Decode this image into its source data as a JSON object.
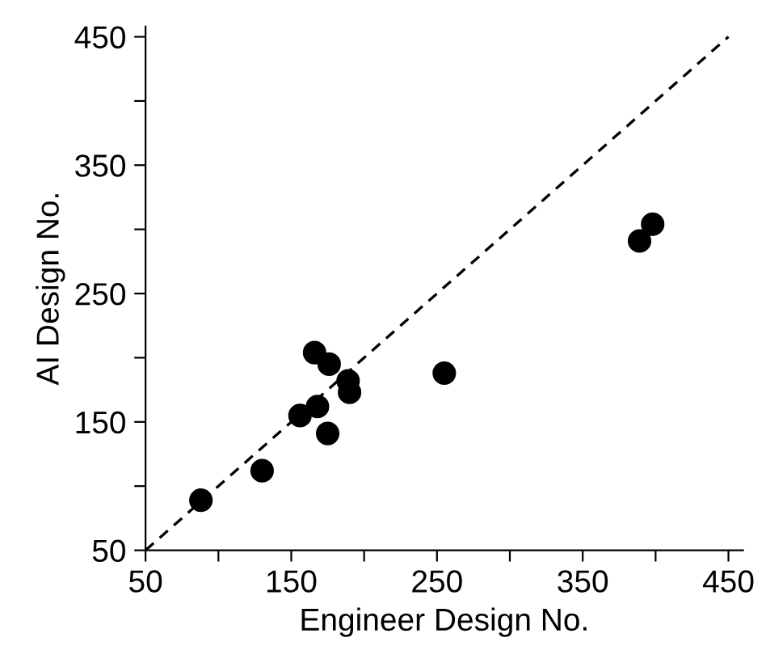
{
  "chart_data": {
    "type": "scatter",
    "xlabel": "Engineer Design No.",
    "ylabel": "AI Design No.",
    "xlim": [
      50,
      460
    ],
    "ylim": [
      50,
      458
    ],
    "xticks": [
      50,
      {
        "value": 100,
        "label": null
      },
      150,
      {
        "value": 200,
        "label": null
      },
      250,
      {
        "value": 300,
        "label": null
      },
      350,
      {
        "value": 400,
        "label": null
      },
      450
    ],
    "yticks": [
      50,
      {
        "value": 100,
        "label": null
      },
      150,
      {
        "value": 200,
        "label": null
      },
      250,
      {
        "value": 300,
        "label": null
      },
      350,
      {
        "value": 400,
        "label": null
      },
      450
    ],
    "grid": false,
    "legend": false,
    "marker": "circle",
    "series": [
      {
        "type": "scatter",
        "color": "#000000",
        "x": [
          88,
          130,
          156,
          168,
          166,
          176,
          189,
          190,
          175,
          255,
          389,
          398
        ],
        "values": [
          89,
          112,
          155,
          162,
          204,
          195,
          182,
          173,
          141,
          188,
          291,
          304
        ]
      },
      {
        "type": "line",
        "color": "#000000",
        "line_style": "dashed",
        "marker": "none",
        "x": [
          50,
          450
        ],
        "values": [
          50,
          450
        ]
      }
    ]
  }
}
